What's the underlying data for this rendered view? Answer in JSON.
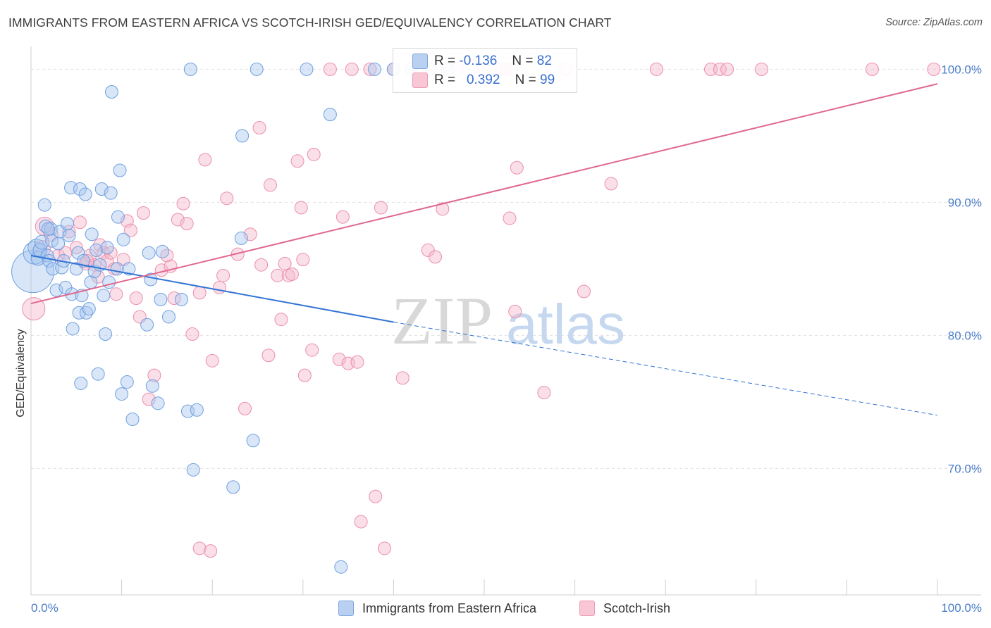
{
  "title": "IMMIGRANTS FROM EASTERN AFRICA VS SCOTCH-IRISH GED/EQUIVALENCY CORRELATION CHART",
  "source": "Source: ZipAtlas.com",
  "watermark": {
    "zip": "ZIP",
    "atlas": "atlas"
  },
  "legend": {
    "rows": [
      {
        "r_label": "R =",
        "r_value": "-0.136",
        "n_label": "N =",
        "n_value": "82"
      },
      {
        "r_label": "R =",
        "r_value": "0.392",
        "n_label": "N =",
        "n_value": "99"
      }
    ]
  },
  "bottom_legend": {
    "series1": "Immigrants from Eastern Africa",
    "series2": "Scotch-Irish"
  },
  "colors": {
    "blue_fill": "#a9c7ef",
    "blue_stroke": "#6f9fe0",
    "blue_line": "#3474d4",
    "pink_fill": "#f5b8cb",
    "pink_stroke": "#ec8eab",
    "pink_line": "#e0688f",
    "axis_text": "#4a7cc9",
    "grid": "#e1e1e1"
  },
  "chart_data": {
    "type": "scatter",
    "title": "IMMIGRANTS FROM EASTERN AFRICA VS SCOTCH-IRISH GED/EQUIVALENCY CORRELATION CHART",
    "xlabel": "",
    "ylabel": "GED/Equivalency",
    "xlim": [
      0,
      100
    ],
    "ylim": [
      60.5,
      101.5
    ],
    "x_tick_labels": [
      "0.0%",
      "100.0%"
    ],
    "y_ticks": [
      70,
      80,
      90,
      100
    ],
    "y_tick_labels": [
      "70.0%",
      "80.0%",
      "90.0%",
      "100.0%"
    ],
    "grid": true,
    "legend_position": "top-center",
    "series": [
      {
        "name": "Immigrants from Eastern Africa",
        "r": -0.136,
        "n": 82,
        "trend": {
          "x": [
            0,
            40,
            100
          ],
          "y": [
            86.0,
            81.0,
            74.0
          ],
          "solid_until": 40
        },
        "points": [
          [
            0.2,
            84.8,
            30
          ],
          [
            0.4,
            86.2,
            16
          ],
          [
            0.6,
            86.6,
            12
          ],
          [
            0.8,
            85.8,
            10
          ],
          [
            1.0,
            86.4,
            10
          ],
          [
            1.2,
            87.0,
            10
          ],
          [
            1.5,
            89.8,
            9
          ],
          [
            1.6,
            88.2,
            9
          ],
          [
            1.8,
            86.0,
            9
          ],
          [
            2.0,
            85.6,
            9
          ],
          [
            2.2,
            88.0,
            9
          ],
          [
            2.3,
            87.1,
            9
          ],
          [
            2.4,
            85.0,
            9
          ],
          [
            2.8,
            83.4,
            9
          ],
          [
            3.0,
            86.9,
            9
          ],
          [
            3.2,
            87.8,
            9
          ],
          [
            3.4,
            85.1,
            9
          ],
          [
            3.6,
            85.6,
            9
          ],
          [
            3.8,
            83.6,
            9
          ],
          [
            4.0,
            88.4,
            9
          ],
          [
            4.2,
            87.5,
            9
          ],
          [
            4.4,
            91.1,
            9
          ],
          [
            4.5,
            83.1,
            9
          ],
          [
            4.6,
            80.5,
            9
          ],
          [
            5.0,
            85.0,
            9
          ],
          [
            5.2,
            86.2,
            9
          ],
          [
            5.3,
            81.7,
            9
          ],
          [
            5.4,
            91.0,
            9
          ],
          [
            5.5,
            76.4,
            9
          ],
          [
            5.6,
            83.0,
            9
          ],
          [
            5.8,
            85.6,
            9
          ],
          [
            6.0,
            90.6,
            9
          ],
          [
            6.1,
            81.7,
            9
          ],
          [
            6.4,
            82.0,
            9
          ],
          [
            6.6,
            84.0,
            9
          ],
          [
            6.7,
            87.6,
            9
          ],
          [
            7.0,
            84.8,
            9
          ],
          [
            7.2,
            86.4,
            9
          ],
          [
            7.4,
            77.1,
            9
          ],
          [
            7.6,
            85.3,
            9
          ],
          [
            7.8,
            91.0,
            9
          ],
          [
            8.0,
            83.0,
            9
          ],
          [
            8.2,
            80.1,
            9
          ],
          [
            8.4,
            86.6,
            9
          ],
          [
            8.6,
            84.0,
            9
          ],
          [
            8.8,
            90.7,
            9
          ],
          [
            8.9,
            98.3,
            9
          ],
          [
            9.5,
            85.0,
            9
          ],
          [
            9.6,
            88.9,
            9
          ],
          [
            9.8,
            92.4,
            9
          ],
          [
            10.0,
            75.6,
            9
          ],
          [
            10.2,
            87.2,
            9
          ],
          [
            10.6,
            76.5,
            9
          ],
          [
            10.8,
            85.0,
            9
          ],
          [
            11.2,
            73.7,
            9
          ],
          [
            12.8,
            80.8,
            9
          ],
          [
            13.0,
            86.2,
            9
          ],
          [
            13.2,
            84.2,
            9
          ],
          [
            13.4,
            76.2,
            9
          ],
          [
            14.0,
            74.9,
            9
          ],
          [
            14.3,
            82.7,
            9
          ],
          [
            14.5,
            86.3,
            9
          ],
          [
            15.2,
            81.4,
            9
          ],
          [
            16.6,
            82.7,
            9
          ],
          [
            17.3,
            74.3,
            9
          ],
          [
            17.6,
            100.0,
            9
          ],
          [
            17.9,
            69.9,
            9
          ],
          [
            18.3,
            74.4,
            9
          ],
          [
            22.3,
            68.6,
            9
          ],
          [
            23.2,
            87.3,
            9
          ],
          [
            23.3,
            95.0,
            9
          ],
          [
            24.5,
            72.1,
            9
          ],
          [
            24.9,
            100.0,
            9
          ],
          [
            30.4,
            100.0,
            9
          ],
          [
            33.0,
            96.6,
            9
          ],
          [
            34.2,
            62.6,
            9
          ],
          [
            37.9,
            100.0,
            9
          ],
          [
            40.0,
            100.0,
            9
          ],
          [
            42.0,
            100.0,
            9
          ],
          [
            44.0,
            100.0,
            9
          ],
          [
            46.0,
            100.0,
            9
          ],
          [
            1.9,
            88.0,
            9
          ]
        ]
      },
      {
        "name": "Scotch-Irish",
        "r": 0.392,
        "n": 99,
        "trend": {
          "x": [
            0,
            100
          ],
          "y": [
            82.4,
            98.9
          ]
        },
        "points": [
          [
            0.3,
            82.0,
            16
          ],
          [
            1.2,
            86.5,
            12
          ],
          [
            1.5,
            88.2,
            13
          ],
          [
            2.2,
            87.6,
            10
          ],
          [
            3.0,
            86.0,
            9
          ],
          [
            3.8,
            86.2,
            9
          ],
          [
            4.2,
            87.8,
            9
          ],
          [
            5.0,
            86.6,
            9
          ],
          [
            5.4,
            88.5,
            9
          ],
          [
            6.0,
            85.4,
            9
          ],
          [
            6.5,
            86.0,
            9
          ],
          [
            7.0,
            85.3,
            9
          ],
          [
            7.4,
            84.4,
            9
          ],
          [
            7.6,
            86.8,
            9
          ],
          [
            8.0,
            86.2,
            9
          ],
          [
            8.4,
            85.6,
            9
          ],
          [
            8.8,
            86.2,
            9
          ],
          [
            9.2,
            85.0,
            9
          ],
          [
            9.4,
            83.1,
            9
          ],
          [
            10.2,
            85.7,
            9
          ],
          [
            10.6,
            88.6,
            9
          ],
          [
            11.0,
            87.9,
            9
          ],
          [
            11.6,
            82.8,
            9
          ],
          [
            12.0,
            81.4,
            9
          ],
          [
            12.4,
            89.2,
            9
          ],
          [
            13.0,
            75.2,
            9
          ],
          [
            13.6,
            77.0,
            9
          ],
          [
            14.4,
            84.9,
            9
          ],
          [
            15.0,
            86.0,
            9
          ],
          [
            15.4,
            85.2,
            9
          ],
          [
            15.8,
            82.8,
            9
          ],
          [
            16.2,
            88.7,
            9
          ],
          [
            16.8,
            89.9,
            9
          ],
          [
            17.2,
            88.4,
            9
          ],
          [
            17.8,
            80.1,
            9
          ],
          [
            18.6,
            83.2,
            9
          ],
          [
            19.2,
            93.2,
            9
          ],
          [
            20.0,
            78.1,
            9
          ],
          [
            20.8,
            83.6,
            9
          ],
          [
            21.2,
            84.5,
            9
          ],
          [
            21.6,
            90.3,
            9
          ],
          [
            22.8,
            86.1,
            9
          ],
          [
            23.6,
            74.5,
            9
          ],
          [
            24.2,
            87.6,
            9
          ],
          [
            25.2,
            95.6,
            9
          ],
          [
            25.4,
            85.3,
            9
          ],
          [
            26.2,
            78.5,
            9
          ],
          [
            26.4,
            91.3,
            9
          ],
          [
            27.2,
            84.5,
            9
          ],
          [
            27.6,
            81.2,
            9
          ],
          [
            28.0,
            85.4,
            9
          ],
          [
            28.4,
            84.5,
            9
          ],
          [
            28.8,
            84.6,
            9
          ],
          [
            29.4,
            93.1,
            9
          ],
          [
            29.8,
            89.6,
            9
          ],
          [
            30.0,
            85.7,
            9
          ],
          [
            30.2,
            77.0,
            9
          ],
          [
            31.0,
            78.9,
            9
          ],
          [
            31.2,
            93.6,
            9
          ],
          [
            33.0,
            100.0,
            9
          ],
          [
            34.0,
            78.2,
            9
          ],
          [
            34.4,
            88.9,
            9
          ],
          [
            35.0,
            77.9,
            9
          ],
          [
            35.4,
            100.0,
            9
          ],
          [
            36.0,
            78.0,
            9
          ],
          [
            36.4,
            66.0,
            9
          ],
          [
            37.4,
            100.0,
            9
          ],
          [
            38.0,
            67.9,
            9
          ],
          [
            38.6,
            89.6,
            9
          ],
          [
            39.0,
            64.0,
            9
          ],
          [
            40.0,
            100.0,
            9
          ],
          [
            41.0,
            76.8,
            9
          ],
          [
            43.0,
            100.0,
            9
          ],
          [
            43.8,
            86.4,
            9
          ],
          [
            44.6,
            85.9,
            9
          ],
          [
            45.0,
            100.0,
            9
          ],
          [
            45.4,
            89.5,
            9
          ],
          [
            47.0,
            100.0,
            9
          ],
          [
            50.0,
            100.0,
            9
          ],
          [
            52.0,
            100.0,
            9
          ],
          [
            52.4,
            100.0,
            9
          ],
          [
            52.8,
            88.8,
            9
          ],
          [
            53.0,
            100.0,
            9
          ],
          [
            53.4,
            81.8,
            9
          ],
          [
            53.6,
            92.6,
            9
          ],
          [
            56.6,
            75.7,
            9
          ],
          [
            59.0,
            100.0,
            9
          ],
          [
            61.0,
            83.3,
            9
          ],
          [
            64.0,
            91.4,
            9
          ],
          [
            69.0,
            100.0,
            9
          ],
          [
            75.0,
            100.0,
            9
          ],
          [
            76.0,
            100.0,
            9
          ],
          [
            76.8,
            100.0,
            9
          ],
          [
            80.6,
            100.0,
            9
          ],
          [
            92.8,
            100.0,
            9
          ],
          [
            99.6,
            100.0,
            9
          ],
          [
            18.6,
            64.0,
            9
          ],
          [
            19.8,
            63.8,
            9
          ],
          [
            6.2,
            85.6,
            9
          ]
        ]
      }
    ]
  }
}
